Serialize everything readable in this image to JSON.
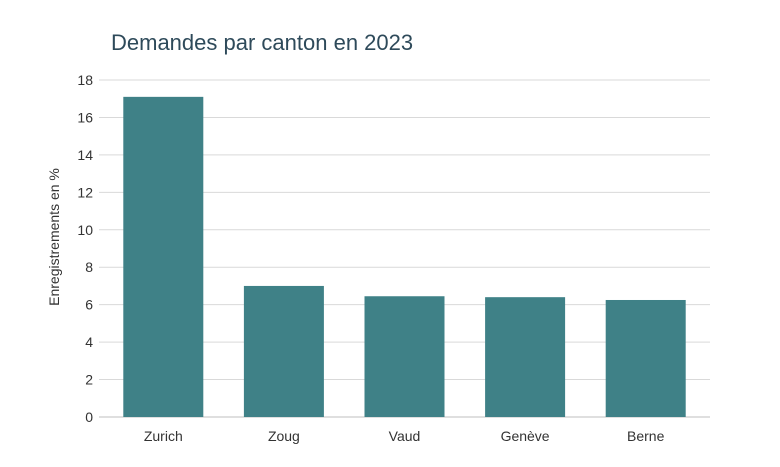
{
  "chart_data": {
    "type": "bar",
    "title": "Demandes par canton en 2023",
    "xlabel": "",
    "ylabel": "Enregistrements en %",
    "categories": [
      "Zurich",
      "Zoug",
      "Vaud",
      "Genève",
      "Berne"
    ],
    "values": [
      17.1,
      7.0,
      6.45,
      6.4,
      6.25
    ],
    "ylim": [
      0,
      18
    ],
    "yticks": [
      0,
      2,
      4,
      6,
      8,
      10,
      12,
      14,
      16,
      18
    ],
    "grid": true,
    "legend": "none",
    "bar_color": "#3f8187",
    "grid_color": "#d9d9d9"
  }
}
